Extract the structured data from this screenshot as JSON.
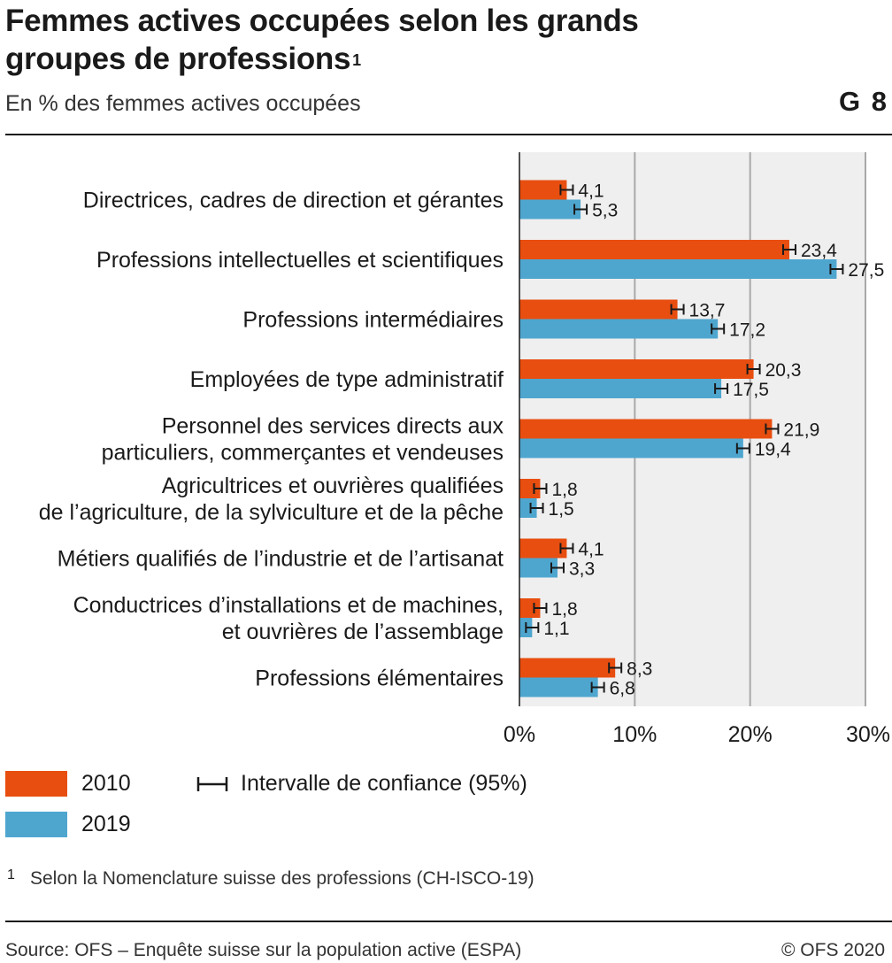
{
  "header": {
    "title_line1": "Femmes actives occupées selon les grands",
    "title_line2": "groupes de professions",
    "title_sup": "1",
    "subtitle": "En % des femmes actives occupées",
    "figure_number": "G 8"
  },
  "chart_data": {
    "type": "bar",
    "orientation": "horizontal",
    "categories": [
      [
        "Directrices, cadres de direction et gérantes"
      ],
      [
        "Professions intellectuelles et scientifiques"
      ],
      [
        "Professions intermédiaires"
      ],
      [
        "Employées de type administratif"
      ],
      [
        "Personnel des services directs aux",
        "particuliers, commerçantes et vendeuses"
      ],
      [
        "Agricultrices et ouvrières qualifiées",
        "de l’agriculture, de la sylviculture et de la pêche"
      ],
      [
        "Métiers qualifiés de l’industrie et de l’artisanat"
      ],
      [
        "Conductrices d’installations et de machines,",
        "et ouvrières de l’assemblage"
      ],
      [
        "Professions élémentaires"
      ]
    ],
    "series": [
      {
        "name": "2010",
        "color": "#e84e0f",
        "values": [
          4.1,
          23.4,
          13.7,
          20.3,
          21.9,
          1.8,
          4.1,
          1.8,
          8.3
        ],
        "labels": [
          "4,1",
          "23,4",
          "13,7",
          "20,3",
          "21,9",
          "1,8",
          "4,1",
          "1,8",
          "8,3"
        ]
      },
      {
        "name": "2019",
        "color": "#4ea6cf",
        "values": [
          5.3,
          27.5,
          17.2,
          17.5,
          19.4,
          1.5,
          3.3,
          1.1,
          6.8
        ],
        "labels": [
          "5,3",
          "27,5",
          "17,2",
          "17,5",
          "19,4",
          "1,5",
          "3,3",
          "1,1",
          "6,8"
        ]
      }
    ],
    "xlim": [
      0,
      30
    ],
    "xticks": [
      0,
      10,
      20,
      30
    ],
    "xtick_labels": [
      "0%",
      "10%",
      "20%",
      "30%"
    ],
    "error_bars": "confidence interval 95%",
    "grid": true,
    "legend_placement": "bottom-left"
  },
  "legend": {
    "ci_label": "Intervalle de confiance (95%)"
  },
  "footnote": {
    "mark": "1",
    "text": "Selon la Nomenclature suisse des professions (CH-ISCO-19)"
  },
  "footer": {
    "source": "Source: OFS – Enquête suisse sur la population active (ESPA)",
    "copyright": "© OFS 2020"
  }
}
